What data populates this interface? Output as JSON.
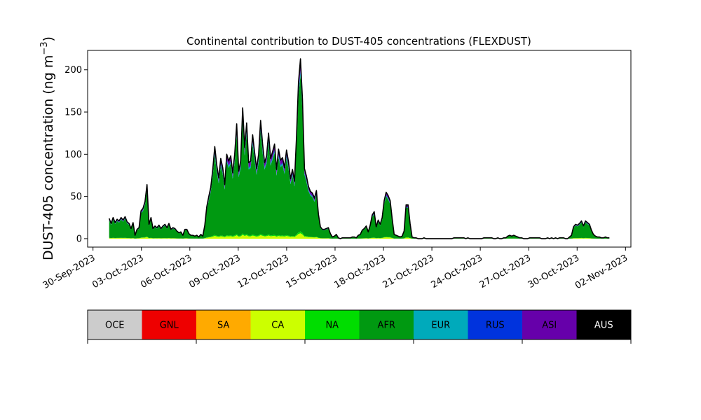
{
  "chart_data": {
    "type": "area",
    "title": "Continental contribution to DUST-405 concentrations (FLEXDUST)",
    "ylabel_main": "DUST-405 concentration (ng m",
    "ylabel_sup": "−3",
    "ylabel_close": ")",
    "xlabel": "",
    "x_start": "2023-10-01",
    "x_end": "2023-11-01",
    "xlim": [
      "2023-09-29T16:00",
      "2023-11-02T08:00"
    ],
    "ylim": [
      -10,
      223
    ],
    "x_ticks": [
      {
        "date": "2023-09-30",
        "label": "30-Sep-2023"
      },
      {
        "date": "2023-10-03",
        "label": "03-Oct-2023"
      },
      {
        "date": "2023-10-06",
        "label": "06-Oct-2023"
      },
      {
        "date": "2023-10-09",
        "label": "09-Oct-2023"
      },
      {
        "date": "2023-10-12",
        "label": "12-Oct-2023"
      },
      {
        "date": "2023-10-15",
        "label": "15-Oct-2023"
      },
      {
        "date": "2023-10-18",
        "label": "18-Oct-2023"
      },
      {
        "date": "2023-10-21",
        "label": "21-Oct-2023"
      },
      {
        "date": "2023-10-24",
        "label": "24-Oct-2023"
      },
      {
        "date": "2023-10-27",
        "label": "27-Oct-2023"
      },
      {
        "date": "2023-10-30",
        "label": "30-Oct-2023"
      },
      {
        "date": "2023-11-02",
        "label": "02-Nov-2023"
      }
    ],
    "y_ticks": [
      {
        "value": 0,
        "label": "0"
      },
      {
        "value": 50,
        "label": "50"
      },
      {
        "value": 100,
        "label": "100"
      },
      {
        "value": 150,
        "label": "150"
      },
      {
        "value": 200,
        "label": "200"
      }
    ],
    "total": [
      24,
      18,
      25,
      19,
      23,
      21,
      25,
      22,
      26,
      20,
      18,
      12,
      19,
      4,
      11,
      13,
      33,
      36,
      44,
      64,
      17,
      25,
      12,
      15,
      13,
      16,
      12,
      15,
      17,
      13,
      18,
      11,
      13,
      12,
      9,
      7,
      8,
      4,
      11,
      11,
      6,
      4,
      4,
      3,
      4,
      2,
      5,
      3,
      16,
      38,
      50,
      61,
      82,
      109,
      87,
      72,
      95,
      84,
      64,
      100,
      92,
      98,
      78,
      100,
      136,
      80,
      92,
      155,
      108,
      137,
      90,
      92,
      123,
      102,
      83,
      100,
      140,
      112,
      90,
      98,
      125,
      95,
      103,
      112,
      82,
      106,
      93,
      96,
      84,
      105,
      91,
      71,
      82,
      68,
      120,
      185,
      213,
      165,
      83,
      74,
      62,
      56,
      54,
      48,
      57,
      29,
      14,
      11,
      11,
      12,
      13,
      6,
      2,
      3,
      5,
      1,
      0,
      1,
      1,
      1,
      1,
      1,
      2,
      2,
      1,
      4,
      5,
      10,
      12,
      15,
      8,
      16,
      28,
      32,
      14,
      22,
      17,
      25,
      45,
      55,
      51,
      45,
      24,
      5,
      4,
      3,
      2,
      3,
      9,
      40,
      40,
      18,
      2,
      1,
      1,
      0,
      0,
      0,
      1,
      0,
      0,
      0,
      0,
      0,
      0,
      0,
      0,
      0,
      0,
      0,
      0,
      0,
      0,
      1,
      1,
      1,
      1,
      1,
      1,
      0,
      1,
      0,
      0,
      0,
      0,
      0,
      0,
      0,
      1,
      1,
      1,
      1,
      1,
      0,
      0,
      1,
      0,
      0,
      1,
      1,
      3,
      4,
      3,
      4,
      3,
      2,
      1,
      1,
      0,
      0,
      0,
      1,
      1,
      1,
      1,
      1,
      1,
      0,
      0,
      0,
      1,
      0,
      1,
      0,
      1,
      0,
      1,
      1,
      1,
      0,
      0,
      2,
      4,
      14,
      17,
      16,
      18,
      21,
      15,
      21,
      19,
      17,
      10,
      5,
      3,
      2,
      2,
      1,
      1,
      2,
      1,
      1
    ],
    "composition": [
      {
        "name": "OCE",
        "fraction": 0.0,
        "color": "#cccccc"
      },
      {
        "name": "GNL",
        "fraction": 0.0,
        "color": "#ee0000"
      },
      {
        "name": "SA",
        "fraction": 0.0,
        "color": "#ffaa00"
      },
      {
        "name": "CA",
        "fraction": 0.03,
        "color": "#ccff00"
      },
      {
        "name": "NA",
        "fraction": 0.01,
        "color": "#00dd00"
      },
      {
        "name": "AFR",
        "fraction": 0.87,
        "color": "#009911"
      },
      {
        "name": "EUR",
        "fraction": 0.02,
        "color": "#00aabb"
      },
      {
        "name": "RUS",
        "fraction": 0.01,
        "color": "#0033dd"
      },
      {
        "name": "ASI",
        "fraction": 0.06,
        "color": "#6600aa"
      },
      {
        "name": "AUS",
        "fraction": 0.0,
        "color": "#000000"
      }
    ],
    "legend": {
      "position": "bottom",
      "entries": [
        {
          "label": "OCE",
          "color": "#cccccc",
          "text_color": "#000000"
        },
        {
          "label": "GNL",
          "color": "#ee0000",
          "text_color": "#000000"
        },
        {
          "label": "SA",
          "color": "#ffaa00",
          "text_color": "#000000"
        },
        {
          "label": "CA",
          "color": "#ccff00",
          "text_color": "#000000"
        },
        {
          "label": "NA",
          "color": "#00dd00",
          "text_color": "#000000"
        },
        {
          "label": "AFR",
          "color": "#009911",
          "text_color": "#000000"
        },
        {
          "label": "EUR",
          "color": "#00aabb",
          "text_color": "#000000"
        },
        {
          "label": "RUS",
          "color": "#0033dd",
          "text_color": "#000000"
        },
        {
          "label": "ASI",
          "color": "#6600aa",
          "text_color": "#000000"
        },
        {
          "label": "AUS",
          "color": "#000000",
          "text_color": "#ffffff"
        }
      ]
    },
    "grid": false
  }
}
